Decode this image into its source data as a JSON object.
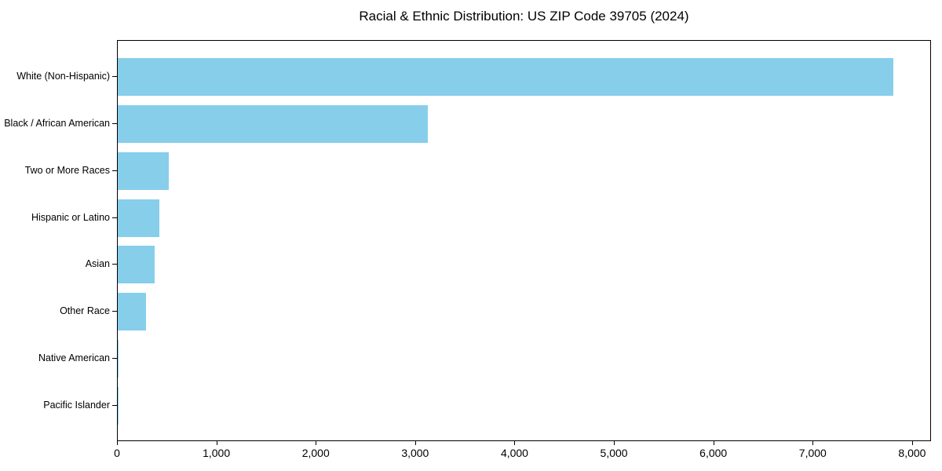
{
  "chart_data": {
    "type": "bar",
    "orientation": "horizontal",
    "title": "Racial & Ethnic Distribution: US ZIP Code 39705 (2024)",
    "categories": [
      "White (Non-Hispanic)",
      "Black / African American",
      "Two or More Races",
      "Hispanic or Latino",
      "Asian",
      "Other Race",
      "Native American",
      "Pacific Islander"
    ],
    "values": [
      7800,
      3120,
      515,
      420,
      375,
      285,
      10,
      3
    ],
    "xlabel": "",
    "ylabel": "",
    "xlim": [
      0,
      8190
    ],
    "x_ticks": [
      0,
      1000,
      2000,
      3000,
      4000,
      5000,
      6000,
      7000,
      8000
    ],
    "x_tick_labels": [
      "0",
      "1,000",
      "2,000",
      "3,000",
      "4,000",
      "5,000",
      "6,000",
      "7,000",
      "8,000"
    ],
    "bar_color": "#87CEEB",
    "background_color": "#FFFFFF",
    "axis_color": "#000000",
    "grid": false,
    "legend": "none"
  }
}
